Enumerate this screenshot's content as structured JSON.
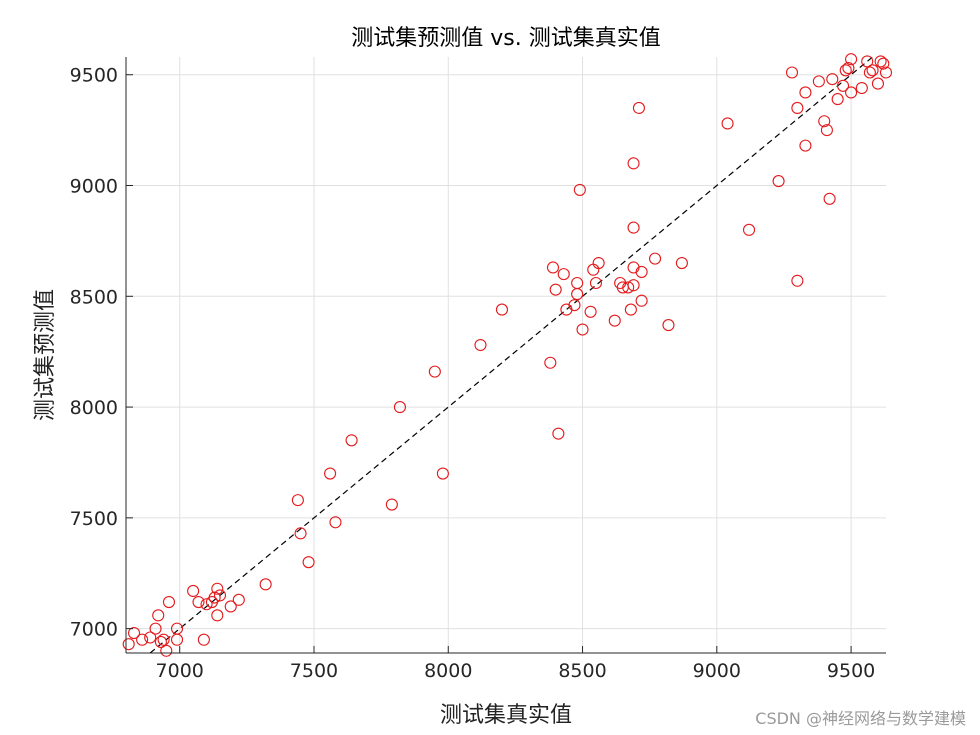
{
  "watermark": "CSDN @神经网络与数学建模",
  "chart_data": {
    "type": "scatter",
    "title": "测试集预测值 vs. 测试集真实值",
    "xlabel": "测试集真实值",
    "ylabel": "测试集预测值",
    "xlim": [
      6800,
      9630
    ],
    "ylim": [
      6890,
      9580
    ],
    "xticks": [
      7000,
      7500,
      8000,
      8500,
      9000,
      9500
    ],
    "yticks": [
      7000,
      7500,
      8000,
      8500,
      9000,
      9500
    ],
    "grid": true,
    "colors": {
      "marker": "#e41a1c",
      "reference_line": "#000000",
      "grid": "#e0e0e0"
    },
    "reference_line": {
      "style": "dashed",
      "from": [
        6800,
        6800
      ],
      "to": [
        9630,
        9630
      ]
    },
    "marker": "open-circle",
    "x": [
      6810,
      6830,
      6860,
      6890,
      6910,
      6920,
      6930,
      6940,
      6950,
      6960,
      6990,
      6990,
      7050,
      7070,
      7090,
      7100,
      7120,
      7130,
      7140,
      7140,
      7150,
      7190,
      7220,
      7320,
      7440,
      7450,
      7480,
      7560,
      7580,
      7640,
      7790,
      7820,
      7950,
      7980,
      8120,
      8200,
      8380,
      8390,
      8400,
      8410,
      8430,
      8440,
      8470,
      8480,
      8480,
      8490,
      8500,
      8530,
      8540,
      8550,
      8560,
      8620,
      8640,
      8650,
      8670,
      8680,
      8690,
      8690,
      8690,
      8690,
      8710,
      8720,
      8720,
      8770,
      8820,
      8870,
      9040,
      9120,
      9230,
      9280,
      9300,
      9300,
      9330,
      9330,
      9380,
      9400,
      9410,
      9420,
      9430,
      9450,
      9470,
      9480,
      9490,
      9500,
      9500,
      9540,
      9560,
      9570,
      9580,
      9600,
      9610,
      9620,
      9630
    ],
    "y": [
      6930,
      6980,
      6950,
      6960,
      7000,
      7060,
      6940,
      6950,
      6900,
      7120,
      6950,
      7000,
      7170,
      7120,
      6950,
      7110,
      7120,
      7140,
      7060,
      7180,
      7150,
      7100,
      7130,
      7200,
      7580,
      7430,
      7300,
      7700,
      7480,
      7850,
      7560,
      8000,
      8160,
      7700,
      8280,
      8440,
      8200,
      8630,
      8530,
      7880,
      8600,
      8440,
      8460,
      8510,
      8560,
      8980,
      8350,
      8430,
      8620,
      8560,
      8650,
      8390,
      8560,
      8540,
      8540,
      8440,
      8630,
      8810,
      8550,
      9100,
      9350,
      8610,
      8480,
      8670,
      8370,
      8650,
      9280,
      8800,
      9020,
      9510,
      8570,
      9350,
      9420,
      9180,
      9470,
      9290,
      9250,
      8940,
      9480,
      9390,
      9450,
      9520,
      9530,
      9570,
      9420,
      9440,
      9560,
      9510,
      9520,
      9460,
      9560,
      9550,
      9510
    ]
  }
}
